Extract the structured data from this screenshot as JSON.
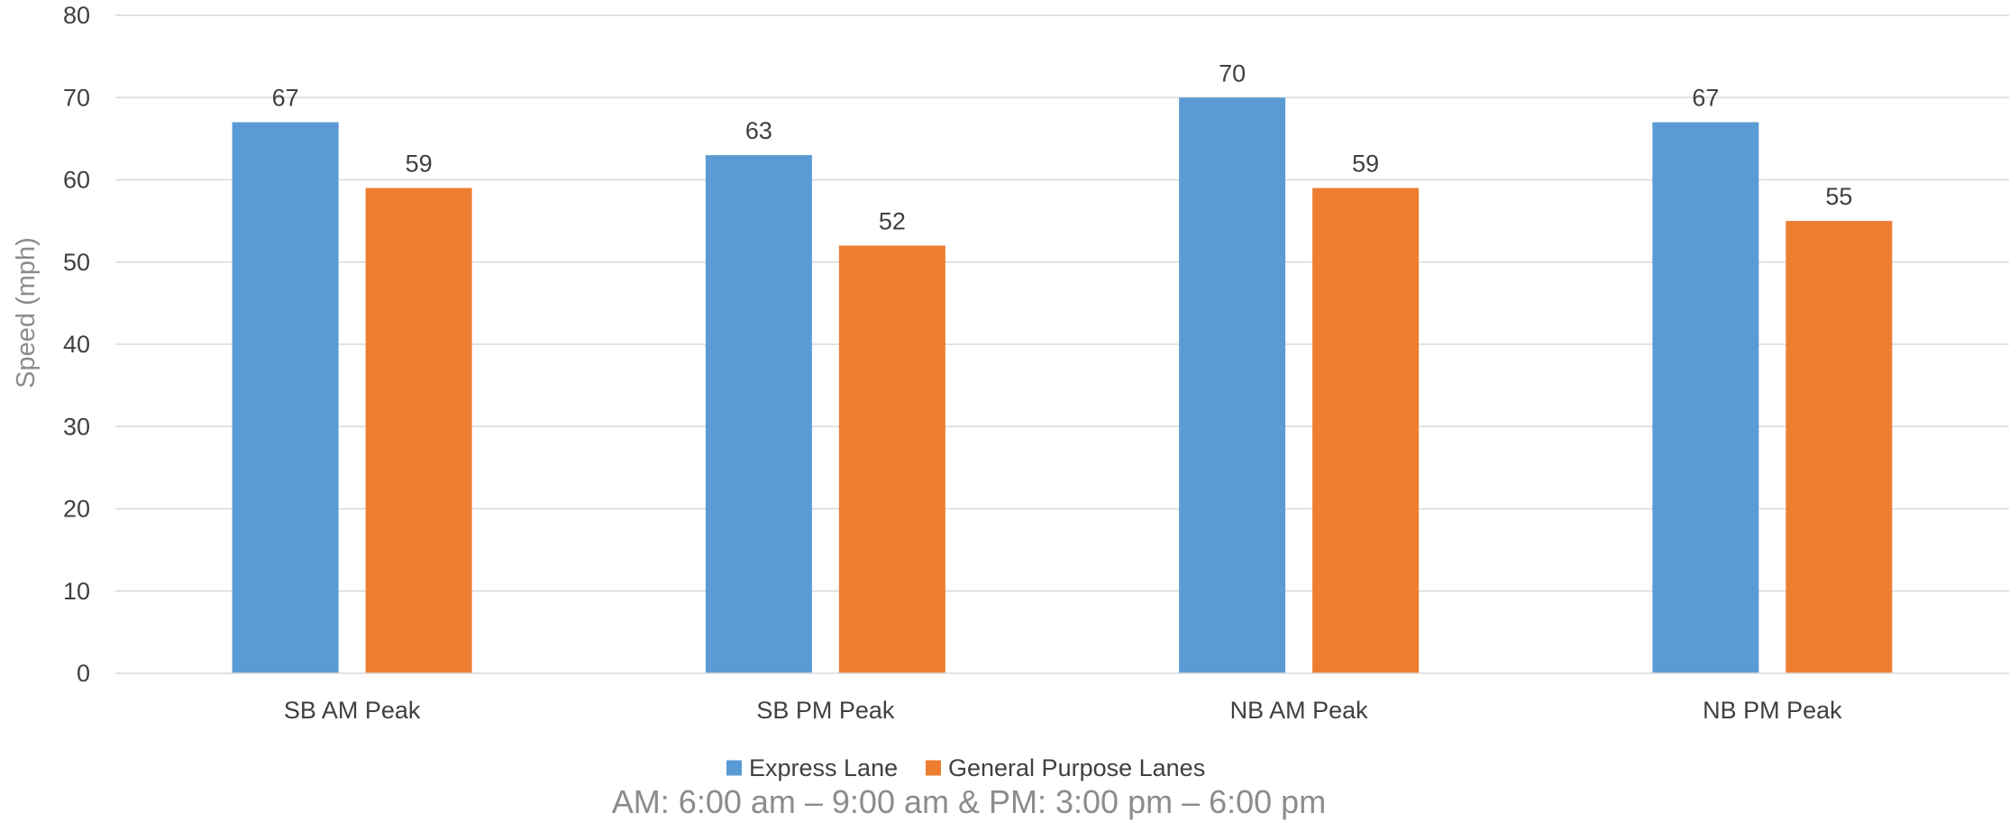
{
  "chart_data": {
    "type": "bar",
    "categories": [
      "SB AM Peak",
      "SB PM Peak",
      "NB AM Peak",
      "NB PM Peak"
    ],
    "series": [
      {
        "name": "Express Lane",
        "values": [
          67,
          63,
          70,
          67
        ],
        "color": "#5b9bd5"
      },
      {
        "name": "General Purpose Lanes",
        "values": [
          59,
          52,
          59,
          55
        ],
        "color": "#ed7d31"
      }
    ],
    "ylabel": "Speed (mph)",
    "xlabel": "",
    "ylim": [
      0,
      80
    ],
    "yticks": [
      0,
      10,
      20,
      30,
      40,
      50,
      60,
      70,
      80
    ],
    "grid": true,
    "legend_position": "bottom",
    "gridline_color": "#d9d9d9"
  },
  "footnote": "AM:  6:00 am – 9:00 am & PM:  3:00 pm – 6:00 pm"
}
